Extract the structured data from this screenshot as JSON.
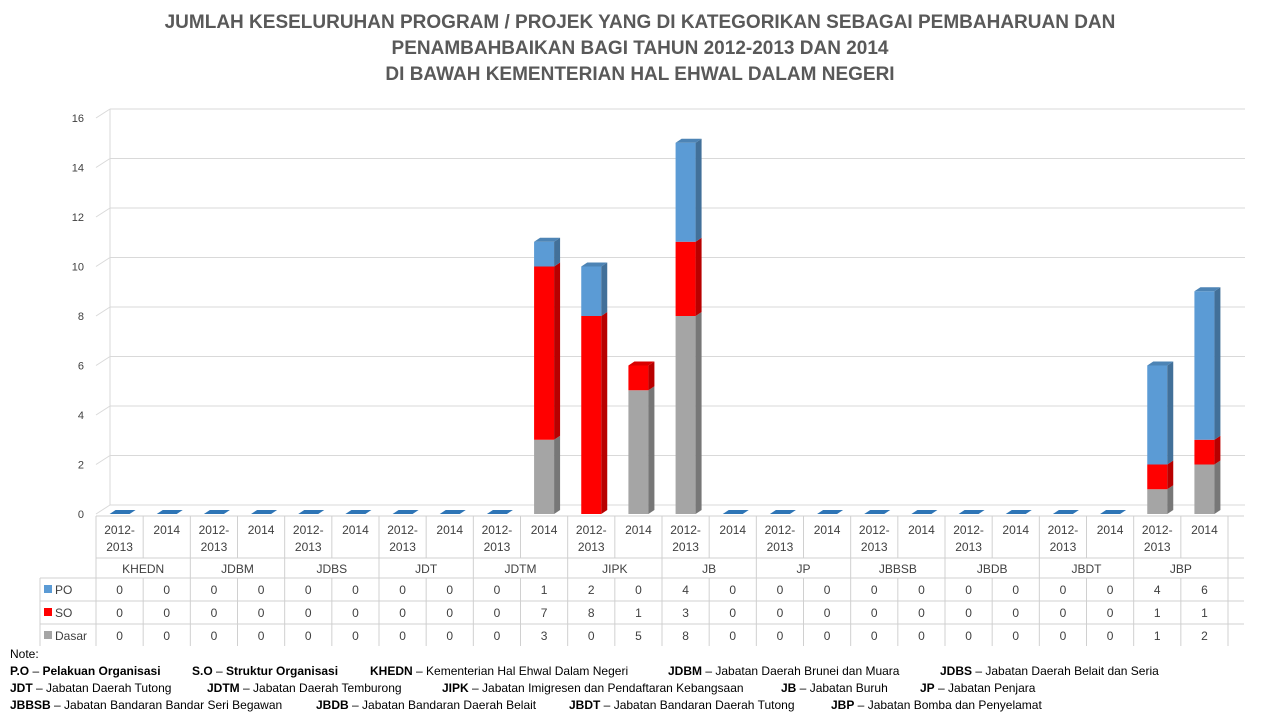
{
  "title_lines": [
    "JUMLAH KESELURUHAN PROGRAM / PROJEK YANG DI KATEGORIKAN SEBAGAI PEMBAHARUAN DAN",
    "PENAMBAHBAIKAN BAGI TAHUN 2012-2013 DAN 2014",
    "DI BAWAH KEMENTERIAN HAL EHWAL DALAM NEGERI"
  ],
  "chart_data": {
    "type": "bar",
    "stacked": true,
    "style": "3d-column-with-data-table",
    "ylim": [
      0,
      16
    ],
    "yticks": [
      0,
      2,
      4,
      6,
      8,
      10,
      12,
      14,
      16
    ],
    "grid": true,
    "groups": [
      "KHEDN",
      "JDBM",
      "JDBS",
      "JDT",
      "JDTM",
      "JIPK",
      "JB",
      "JP",
      "JBBSB",
      "JBDB",
      "JBDT",
      "JBP"
    ],
    "periods": [
      "2012-2013",
      "2014"
    ],
    "series": [
      {
        "name": "PO",
        "color": "#5B9BD5",
        "values": [
          0,
          0,
          0,
          0,
          0,
          0,
          0,
          0,
          0,
          1,
          2,
          0,
          4,
          0,
          0,
          0,
          0,
          0,
          0,
          0,
          0,
          0,
          4,
          6
        ]
      },
      {
        "name": "SO",
        "color": "#FF0000",
        "values": [
          0,
          0,
          0,
          0,
          0,
          0,
          0,
          0,
          0,
          7,
          8,
          1,
          3,
          0,
          0,
          0,
          0,
          0,
          0,
          0,
          0,
          0,
          1,
          1
        ]
      },
      {
        "name": "Dasar",
        "color": "#A5A5A5",
        "values": [
          0,
          0,
          0,
          0,
          0,
          0,
          0,
          0,
          0,
          3,
          0,
          5,
          8,
          0,
          0,
          0,
          0,
          0,
          0,
          0,
          0,
          0,
          1,
          2
        ]
      }
    ]
  },
  "note": {
    "heading": "Note:",
    "rows": [
      [
        {
          "abbr": "P.O",
          "desc": "Pelakuan Organisasi",
          "bold_desc": true
        },
        {
          "abbr": "S.O",
          "desc": "Struktur Organisasi",
          "bold_desc": true
        },
        {
          "abbr": "KHEDN",
          "desc": "Kementerian Hal Ehwal Dalam Negeri"
        },
        {
          "abbr": "JDBM",
          "desc": "Jabatan Daerah Brunei dan Muara"
        },
        {
          "abbr": "JDBS",
          "desc": "Jabatan Daerah Belait dan Seria"
        }
      ],
      [
        {
          "abbr": "JDT",
          "desc": "Jabatan Daerah Tutong"
        },
        {
          "abbr": "JDTM",
          "desc": "Jabatan Daerah Temburong"
        },
        {
          "abbr": "JIPK",
          "desc": "Jabatan Imigresen dan Pendaftaran Kebangsaan"
        },
        {
          "abbr": "JB",
          "desc": "Jabatan Buruh"
        },
        {
          "abbr": "JP",
          "desc": "Jabatan Penjara"
        }
      ],
      [
        {
          "abbr": "JBBSB",
          "desc": "Jabatan Bandaran Bandar Seri Begawan"
        },
        {
          "abbr": "JBDB",
          "desc": "Jabatan Bandaran Daerah Belait"
        },
        {
          "abbr": "JBDT",
          "desc": "Jabatan Bandaran Daerah Tutong"
        },
        {
          "abbr": "JBP",
          "desc": "Jabatan Bomba dan Penyelamat"
        }
      ]
    ]
  }
}
